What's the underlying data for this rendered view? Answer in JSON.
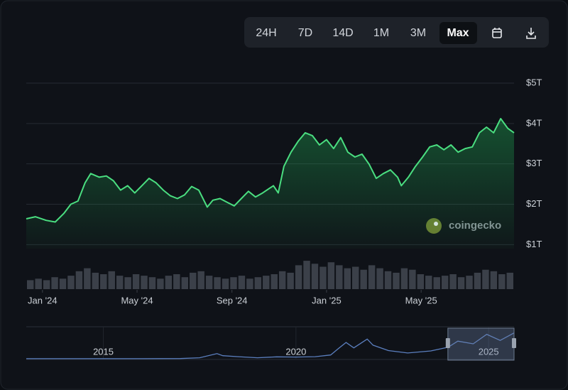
{
  "toolbar": {
    "buttons": [
      "24H",
      "7D",
      "14D",
      "1M",
      "3M",
      "Max"
    ],
    "active": 5
  },
  "watermark": "coingecko",
  "chart_data": [
    {
      "type": "area",
      "color": "#4ade80",
      "x": [
        2023.943,
        2023.975,
        2024.013,
        2024.045,
        2024.075,
        2024.1,
        2024.125,
        2024.15,
        2024.17,
        2024.2,
        2024.225,
        2024.25,
        2024.275,
        2024.3,
        2024.325,
        2024.35,
        2024.375,
        2024.4,
        2024.425,
        2024.45,
        2024.475,
        2024.5,
        2024.525,
        2024.55,
        2024.58,
        2024.6,
        2024.625,
        2024.65,
        2024.675,
        2024.7,
        2024.725,
        2024.75,
        2024.775,
        2024.813,
        2024.83,
        2024.85,
        2024.875,
        2024.9,
        2024.925,
        2024.95,
        2024.975,
        2025.0,
        2025.025,
        2025.05,
        2025.075,
        2025.1,
        2025.125,
        2025.15,
        2025.175,
        2025.2,
        2025.225,
        2025.25,
        2025.263,
        2025.288,
        2025.313,
        2025.338,
        2025.363,
        2025.388,
        2025.413,
        2025.438,
        2025.463,
        2025.488,
        2025.513,
        2025.538,
        2025.563,
        2025.588,
        2025.613,
        2025.638,
        2025.66
      ],
      "values": [
        1.64,
        1.69,
        1.6,
        1.56,
        1.77,
        2.0,
        2.08,
        2.53,
        2.76,
        2.67,
        2.7,
        2.58,
        2.35,
        2.46,
        2.28,
        2.46,
        2.64,
        2.53,
        2.35,
        2.21,
        2.14,
        2.23,
        2.44,
        2.35,
        1.93,
        2.1,
        2.14,
        2.05,
        1.96,
        2.14,
        2.32,
        2.18,
        2.28,
        2.46,
        2.28,
        2.94,
        3.29,
        3.56,
        3.77,
        3.7,
        3.47,
        3.6,
        3.38,
        3.65,
        3.29,
        3.17,
        3.24,
        2.99,
        2.64,
        2.76,
        2.85,
        2.67,
        2.46,
        2.67,
        2.94,
        3.17,
        3.42,
        3.47,
        3.35,
        3.47,
        3.29,
        3.38,
        3.42,
        3.77,
        3.91,
        3.77,
        4.12,
        3.88,
        3.77
      ],
      "xlim": [
        2023.943,
        2025.66
      ],
      "ylim": [
        0.9,
        5.3
      ],
      "xticks": [
        {
          "value": 2024.0,
          "label": "Jan '24"
        },
        {
          "value": 2024.333,
          "label": "May '24"
        },
        {
          "value": 2024.667,
          "label": "Sep '24"
        },
        {
          "value": 2025.0,
          "label": "Jan '25"
        },
        {
          "value": 2025.333,
          "label": "May '25"
        }
      ],
      "yticks": [
        {
          "value": 1,
          "label": "$1T"
        },
        {
          "value": 2,
          "label": "$2T"
        },
        {
          "value": 3,
          "label": "$3T"
        },
        {
          "value": 4,
          "label": "$4T"
        },
        {
          "value": 5,
          "label": "$5T"
        }
      ],
      "grid": true
    },
    {
      "type": "bar",
      "color": "#3b4049",
      "ylim": [
        0,
        1
      ],
      "values": [
        0.3,
        0.35,
        0.3,
        0.4,
        0.35,
        0.45,
        0.6,
        0.7,
        0.55,
        0.5,
        0.6,
        0.45,
        0.4,
        0.5,
        0.45,
        0.4,
        0.35,
        0.45,
        0.5,
        0.4,
        0.55,
        0.6,
        0.45,
        0.4,
        0.35,
        0.4,
        0.45,
        0.35,
        0.4,
        0.45,
        0.5,
        0.6,
        0.55,
        0.8,
        0.95,
        0.85,
        0.75,
        0.9,
        0.8,
        0.7,
        0.75,
        0.65,
        0.8,
        0.7,
        0.6,
        0.55,
        0.7,
        0.65,
        0.5,
        0.45,
        0.4,
        0.45,
        0.5,
        0.4,
        0.45,
        0.55,
        0.65,
        0.6,
        0.5,
        0.55
      ]
    },
    {
      "type": "line",
      "color": "#5b7fbf",
      "xlim": [
        2013.0,
        2025.66
      ],
      "ylim": [
        0,
        4.5
      ],
      "x": [
        2013.0,
        2014.0,
        2015.0,
        2016.0,
        2017.0,
        2017.5,
        2017.95,
        2018.1,
        2018.5,
        2019.0,
        2019.5,
        2020.0,
        2020.5,
        2020.9,
        2021.1,
        2021.3,
        2021.5,
        2021.85,
        2022.0,
        2022.4,
        2022.9,
        2023.5,
        2023.95,
        2024.2,
        2024.6,
        2024.95,
        2025.3,
        2025.66
      ],
      "values": [
        0.01,
        0.01,
        0.01,
        0.01,
        0.03,
        0.15,
        0.75,
        0.45,
        0.3,
        0.15,
        0.28,
        0.25,
        0.3,
        0.55,
        1.5,
        2.4,
        1.6,
        2.9,
        2.0,
        1.2,
        0.85,
        1.15,
        1.7,
        2.6,
        2.2,
        3.6,
        2.7,
        3.8
      ],
      "xticks": [
        2015,
        2020,
        2025
      ]
    }
  ]
}
